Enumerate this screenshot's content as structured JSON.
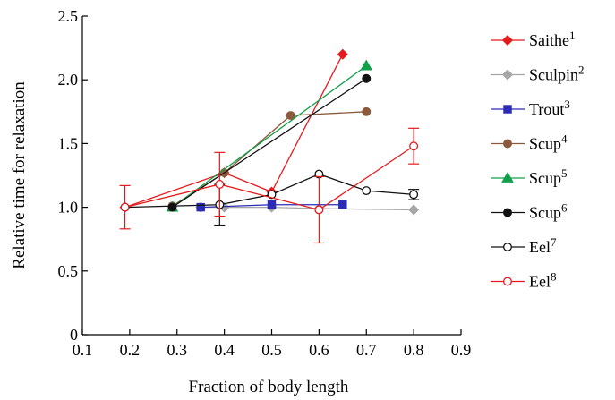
{
  "chart_data": {
    "type": "line",
    "xlabel": "Fraction of body length",
    "ylabel": "Relative time for relaxation",
    "xlim": [
      0.1,
      0.9
    ],
    "ylim": [
      0,
      2.5
    ],
    "xticks": [
      "0.1",
      "0.2",
      "0.3",
      "0.4",
      "0.5",
      "0.6",
      "0.7",
      "0.8",
      "0.9"
    ],
    "yticks": [
      "0",
      "0.5",
      "1.0",
      "1.5",
      "2.0",
      "2.5"
    ],
    "grid": false,
    "legend_position": "right",
    "series": [
      {
        "name": "Saithe",
        "sup": "1",
        "color": "#e41a1c",
        "marker": "diamond",
        "filled": true,
        "x": [
          0.19,
          0.4,
          0.5,
          0.65
        ],
        "y": [
          1.0,
          1.27,
          1.12,
          2.2
        ]
      },
      {
        "name": "Sculpin",
        "sup": "2",
        "color": "#a6a6a6",
        "marker": "diamond",
        "filled": true,
        "x": [
          0.35,
          0.4,
          0.5,
          0.6,
          0.8
        ],
        "y": [
          1.0,
          1.0,
          1.0,
          0.99,
          0.98
        ]
      },
      {
        "name": "Trout",
        "sup": "3",
        "color": "#2b2bb5",
        "marker": "square",
        "filled": true,
        "x": [
          0.35,
          0.5,
          0.65
        ],
        "y": [
          1.0,
          1.02,
          1.02
        ]
      },
      {
        "name": "Scup",
        "sup": "4",
        "color": "#8b5a3c",
        "marker": "circle",
        "filled": true,
        "x": [
          0.29,
          0.4,
          0.54,
          0.7
        ],
        "y": [
          1.01,
          1.27,
          1.72,
          1.75
        ]
      },
      {
        "name": "Scup",
        "sup": "5",
        "color": "#11a04a",
        "marker": "triangle",
        "filled": true,
        "x": [
          0.29,
          0.7
        ],
        "y": [
          1.0,
          2.11
        ]
      },
      {
        "name": "Scup",
        "sup": "6",
        "color": "#111111",
        "marker": "circle",
        "filled": true,
        "x": [
          0.29,
          0.7
        ],
        "y": [
          1.0,
          2.01
        ]
      },
      {
        "name": "Eel",
        "sup": "7",
        "color": "#111111",
        "marker": "circle",
        "filled": false,
        "x": [
          0.19,
          0.39,
          0.5,
          0.6,
          0.7,
          0.8
        ],
        "y": [
          1.0,
          1.02,
          1.1,
          1.26,
          1.13,
          1.1
        ],
        "err": [
          0,
          0.16,
          0,
          0,
          0,
          0.04
        ]
      },
      {
        "name": "Eel",
        "sup": "8",
        "color": "#e41a1c",
        "marker": "circle",
        "filled": false,
        "x": [
          0.19,
          0.39,
          0.6,
          0.8
        ],
        "y": [
          1.0,
          1.18,
          0.98,
          1.48
        ],
        "err": [
          0.17,
          0.25,
          0.26,
          0.14
        ]
      }
    ]
  }
}
